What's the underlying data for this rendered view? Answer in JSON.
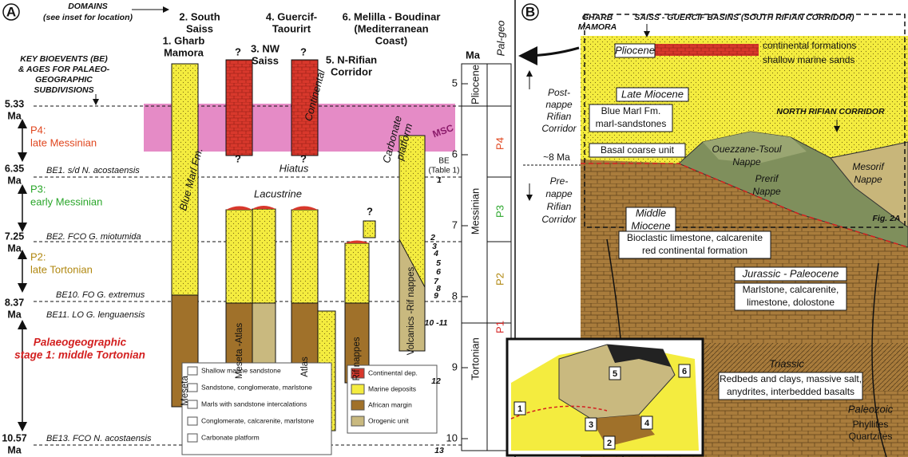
{
  "panel_a": {
    "label": "A",
    "domains_note": [
      "DOMAINS",
      "(see inset for location)"
    ],
    "bioevents_note": [
      "KEY BIOEVENTS (BE)",
      "& AGES FOR PALAEO-",
      "GEOGRAPHIC",
      "SUBDIVISIONS"
    ],
    "domains": [
      [
        "1. Gharb",
        "Mamora"
      ],
      [
        "2. South",
        "Saiss"
      ],
      [
        "3. NW",
        "Saiss"
      ],
      [
        "4. Guercif-",
        "Taourirt"
      ],
      [
        "5. N-Rifian",
        "Corridor"
      ],
      [
        "6. Melilla - Boudinar",
        "(Mediterranean",
        "Coast)"
      ]
    ],
    "ages": [
      {
        "value": 5.33,
        "unit": "Ma"
      },
      {
        "value": 6.35,
        "unit": "Ma"
      },
      {
        "value": 7.25,
        "unit": "Ma"
      },
      {
        "value": 8.37,
        "unit": "Ma"
      },
      {
        "value": 10.57,
        "unit": "Ma"
      }
    ],
    "bioevents": [
      "BE1. s/d N. acostaensis",
      "BE2. FCO G. miotumida",
      "BE10. FO G. extremus",
      "BE11. LO G. lenguaensis",
      "BE13. FCO N. acostaensis"
    ],
    "stages": [
      {
        "code": "P4:",
        "name": "late Messinian"
      },
      {
        "code": "P3:",
        "name": "early Messinian"
      },
      {
        "code": "P2:",
        "name": "late Tortonian"
      },
      {
        "lines": [
          "Palaeogeographic",
          "stage 1: middle Tortonian"
        ]
      }
    ],
    "annotations": {
      "hiatus": "Hiatus",
      "lacustrine": "Lacustrine",
      "continental": "Continental",
      "blue_marl": "Blue Marl Fm.",
      "carbonate_platform": [
        "Carbonate",
        "platform"
      ],
      "msc": "MSC",
      "unknown": "?"
    },
    "basements": [
      "Meseta",
      "Meseta -Atlas",
      "Atlas",
      "Rif nappes",
      "Volcanics -Rif nappes"
    ],
    "scale": {
      "unit": "Ma",
      "ticks": [
        5,
        6,
        7,
        8,
        9,
        10
      ],
      "epochs": [
        "Pliocene",
        "Messinian",
        "Tortonian"
      ],
      "column": "Pal-geo",
      "stages": [
        "P4",
        "P3",
        "P2",
        "P1"
      ],
      "be_header": [
        "BE",
        "(Table 1)"
      ],
      "be_numbers": [
        1,
        2,
        3,
        4,
        5,
        6,
        7,
        8,
        9,
        "10 -11",
        12,
        13
      ]
    },
    "legend_lithology": [
      "Shallow marine sandstone",
      "Sandstone, conglomerate, marlstone",
      "Marls with sandstone intercalations",
      "Conglomerate, calcarenite, marlstone",
      "Carbonate platform"
    ],
    "legend_domains": [
      "Continental dep.",
      "Marine deposits",
      "African margin",
      "Orogenic unit"
    ]
  },
  "panel_b": {
    "label": "B",
    "gharb": [
      "GHARB",
      "MAMORA"
    ],
    "saiss": "SAISS - GUERCIF BASINS (SOUTH RIFIAN CORRIDOR)",
    "pliocene": "Pliocene",
    "pliocene_notes": [
      "continental formations",
      "shallow marine sands"
    ],
    "post_nappe": [
      "Post-",
      "nappe",
      "Rifian",
      "Corridor"
    ],
    "age_8": "~8 Ma",
    "pre_nappe": [
      "Pre-",
      "nappe",
      "Rifian",
      "Corridor"
    ],
    "late_miocene": "Late Miocene",
    "blue_marl": [
      "Blue Marl Fm.",
      "marl-sandstones"
    ],
    "north_corridor": "NORTH RIFIAN CORRIDOR",
    "basal": "Basal coarse unit",
    "ouezzane": [
      "Ouezzane-Tsoul",
      "Nappe"
    ],
    "prerif": [
      "Prerif",
      "Nappe"
    ],
    "mesorif": [
      "Mesorif",
      "Nappe"
    ],
    "fig_ref": "Fig. 2A",
    "middle_miocene": [
      "Middle",
      "Miocene"
    ],
    "middle_miocene_notes": [
      "Bioclastic limestone, calcarenite",
      "red continental formation"
    ],
    "jurassic": "Jurassic - Paleocene",
    "jurassic_notes": [
      "Marlstone, calcarenite,",
      "limestone, dolostone"
    ],
    "triassic": "Triassic",
    "triassic_notes": [
      "Redbeds and clays, massive salt,",
      "anydrites, interbedded basalts"
    ],
    "paleozoic": "Paleozoic",
    "paleozoic_notes": [
      "Phyllites",
      "Quartzites"
    ],
    "inset_numbers": [
      1,
      2,
      3,
      4,
      5,
      6
    ]
  }
}
